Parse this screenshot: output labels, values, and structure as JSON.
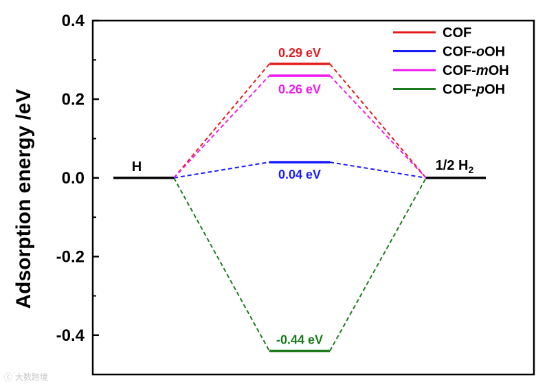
{
  "chart_data": {
    "type": "line",
    "ylabel": "Adsorption energy /eV",
    "ylim": [
      -0.5,
      0.4
    ],
    "yticks": [
      "0.4",
      "0.2",
      "0.0",
      "-0.2",
      "-0.4"
    ],
    "ytick_values": [
      0.4,
      0.2,
      0.0,
      -0.2,
      -0.4
    ],
    "states": [
      {
        "label": "H",
        "value": 0.0
      },
      {
        "label": "",
        "value": null
      },
      {
        "label": "1/2 H",
        "sub": "2",
        "value": 0.0
      }
    ],
    "series": [
      {
        "name": "COF",
        "color": "#e31a1c",
        "values": [
          0.0,
          0.29,
          0.0
        ],
        "value_label": "0.29 eV"
      },
      {
        "name": "COF-oOH",
        "name_prefix": "COF-",
        "name_italic": "o",
        "name_suffix": "OH",
        "color": "#1a1aff",
        "values": [
          0.0,
          0.04,
          0.0
        ],
        "value_label": "0.04 eV"
      },
      {
        "name": "COF-mOH",
        "name_prefix": "COF-",
        "name_italic": "m",
        "name_suffix": "OH",
        "color": "#ee1aee",
        "values": [
          0.0,
          0.26,
          0.0
        ],
        "value_label": "0.26 eV"
      },
      {
        "name": "COF-pOH",
        "name_prefix": "COF-",
        "name_italic": "p",
        "name_suffix": "OH",
        "color": "#1a7a1a",
        "values": [
          0.0,
          -0.44,
          0.0
        ],
        "value_label": "-0.44 eV"
      }
    ],
    "legend_position": "top-right",
    "grid": false
  },
  "watermark": "大数跨境"
}
